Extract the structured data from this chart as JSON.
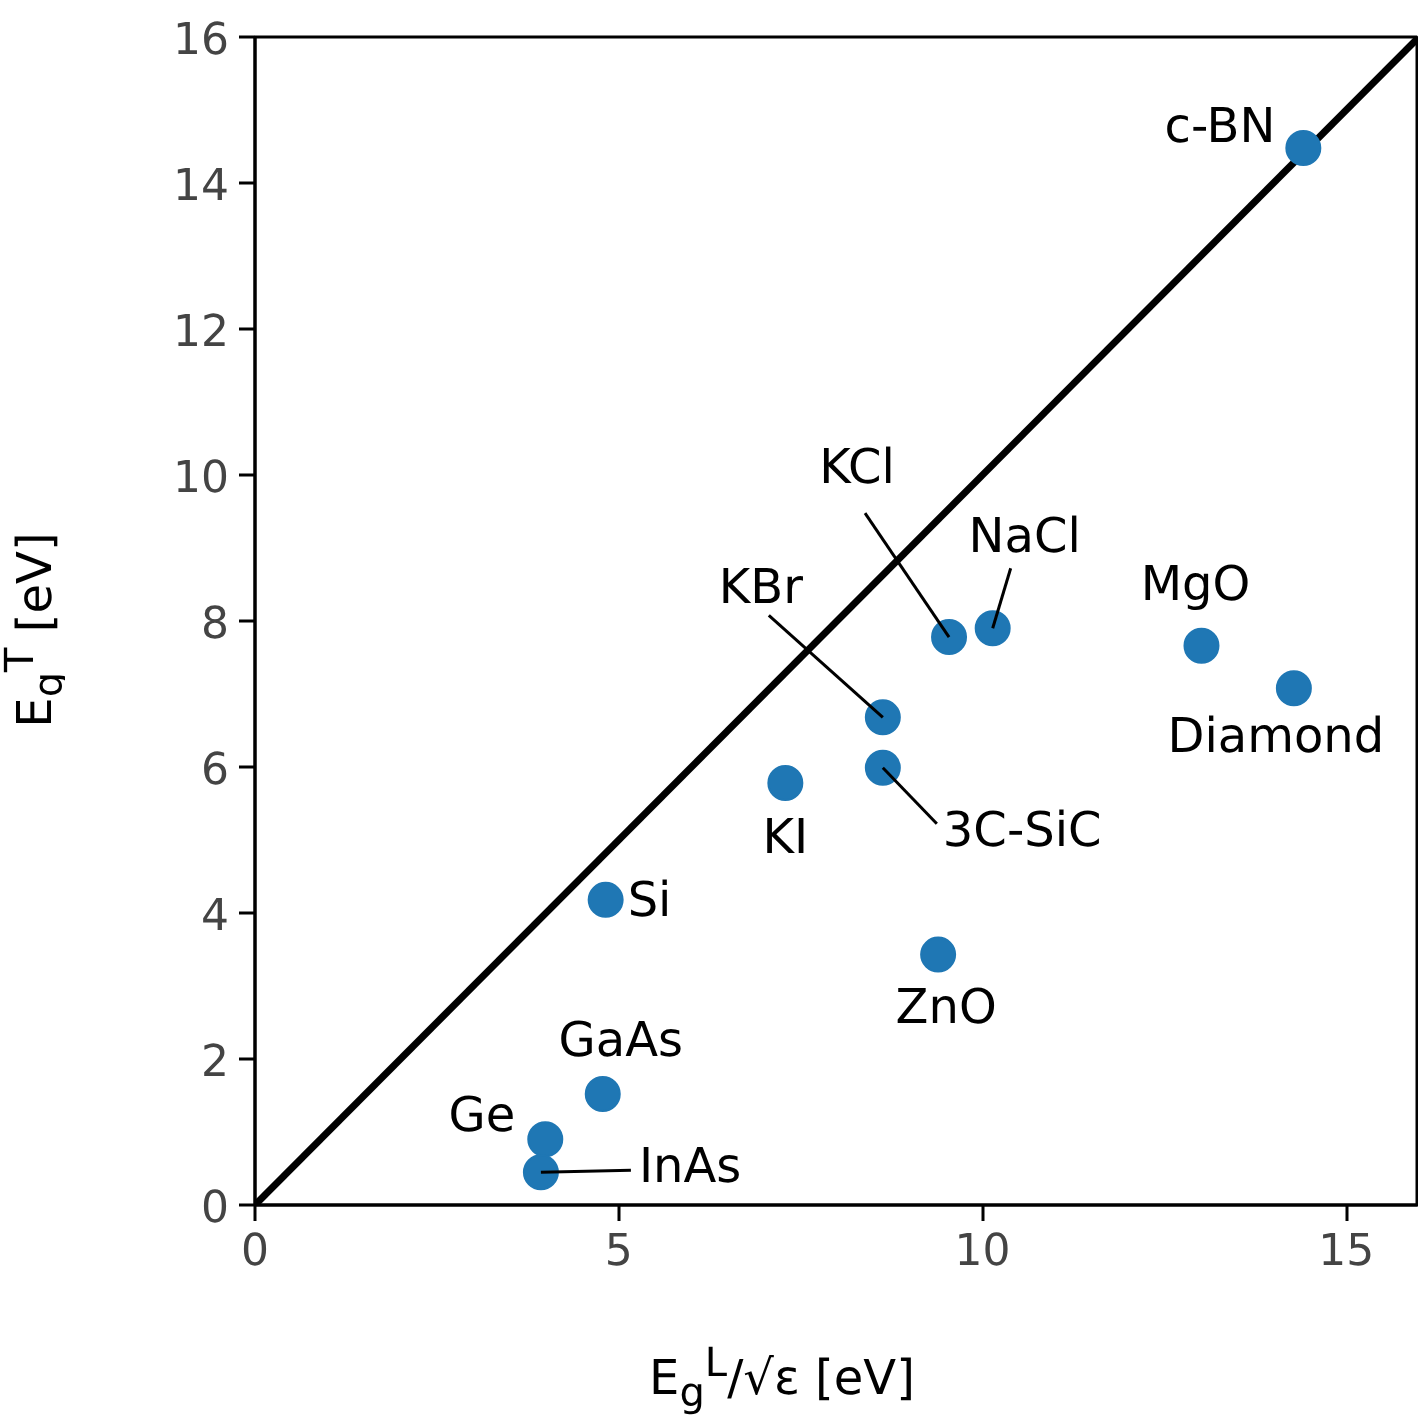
{
  "chart_data": {
    "type": "scatter",
    "xlabel": "E$_{g}$$^{L}$/√ε [eV]",
    "ylabel": "E$_{g}$$^{T}$ [eV]",
    "xlim": [
      0,
      16
    ],
    "ylim": [
      0,
      16
    ],
    "xticks": [
      0,
      5,
      10,
      15
    ],
    "yticks": [
      0,
      2,
      4,
      6,
      8,
      10,
      12,
      14,
      16
    ],
    "grid": false,
    "marker": "circle",
    "series": [
      {
        "type": "line",
        "marker": "none",
        "color": "#000000",
        "x": [
          0,
          16
        ],
        "values": [
          0,
          16
        ]
      },
      {
        "color": "#1f77b4",
        "x": [
          14.41,
          9.54,
          10.14,
          13.01,
          14.28,
          8.63,
          8.63,
          7.29,
          4.82,
          9.39,
          4.78,
          3.99,
          3.93
        ],
        "values": [
          14.48,
          7.78,
          7.9,
          7.66,
          7.08,
          6.68,
          5.99,
          5.78,
          4.18,
          3.43,
          1.52,
          0.9,
          0.45
        ]
      }
    ],
    "annotations": [
      {
        "text": "c-BN",
        "x": 14.41,
        "y": 14.48
      },
      {
        "text": "KCl",
        "x": 9.54,
        "y": 7.78
      },
      {
        "text": "NaCl",
        "x": 10.14,
        "y": 7.9
      },
      {
        "text": "MgO",
        "x": 13.01,
        "y": 7.66
      },
      {
        "text": "Diamond",
        "x": 14.28,
        "y": 7.08
      },
      {
        "text": "KBr",
        "x": 8.63,
        "y": 6.68
      },
      {
        "text": "3C-SiC",
        "x": 8.63,
        "y": 5.99
      },
      {
        "text": "KI",
        "x": 7.29,
        "y": 5.78
      },
      {
        "text": "Si",
        "x": 4.82,
        "y": 4.18
      },
      {
        "text": "ZnO",
        "x": 9.39,
        "y": 3.43
      },
      {
        "text": "GaAs",
        "x": 4.78,
        "y": 1.52
      },
      {
        "text": "Ge",
        "x": 3.99,
        "y": 0.9
      },
      {
        "text": "InAs",
        "x": 3.93,
        "y": 0.45
      }
    ]
  }
}
